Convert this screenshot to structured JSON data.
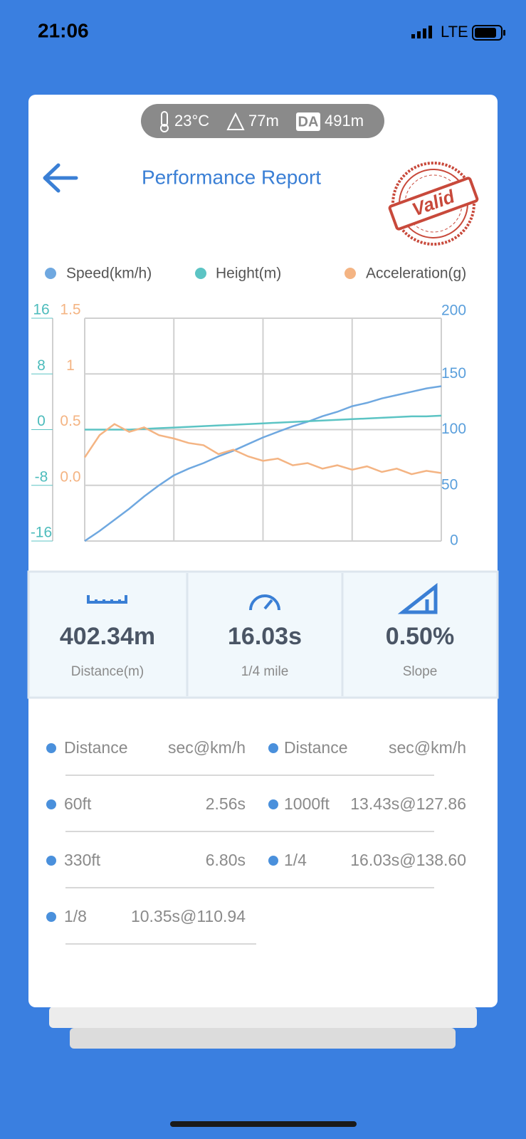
{
  "status_bar": {
    "time": "21:06",
    "network": "LTE"
  },
  "conditions": {
    "temperature": "23°C",
    "altitude": "77m",
    "da_badge": "DA",
    "density_altitude": "491m"
  },
  "header": {
    "title": "Performance Report",
    "stamp": "Valid"
  },
  "chart_data": {
    "type": "line",
    "grid": true,
    "ylim": [
      0,
      200
    ],
    "yticks": [
      0,
      50,
      100,
      150,
      200
    ],
    "y2lim": [
      -16,
      16
    ],
    "y2ticks": [
      -16,
      -8,
      0,
      8,
      16
    ],
    "y3lim": [
      -0.5,
      1.5
    ],
    "y3ticks": [
      {
        "value": 0,
        "label": "0.0"
      },
      0.5,
      1,
      1.5
    ],
    "series": [
      {
        "name": "Speed(km/h)",
        "color": "#6fa8e0",
        "axis": "y",
        "values": [
          0,
          9,
          19,
          29,
          40,
          50,
          59,
          65,
          70,
          76,
          81,
          87,
          93,
          98,
          103,
          107,
          112,
          116,
          121,
          124,
          128,
          131,
          134,
          137,
          139
        ]
      },
      {
        "name": "Height(m)",
        "color": "#5cc4c4",
        "axis": "y2",
        "values": [
          0,
          0,
          0,
          0,
          0.1,
          0.2,
          0.3,
          0.4,
          0.5,
          0.6,
          0.7,
          0.8,
          0.9,
          1.0,
          1.1,
          1.2,
          1.3,
          1.4,
          1.5,
          1.6,
          1.7,
          1.8,
          1.9,
          1.9,
          2.0
        ]
      },
      {
        "name": "Acceleration(g)",
        "color": "#f4b483",
        "axis": "y3",
        "values": [
          0.25,
          0.45,
          0.55,
          0.48,
          0.52,
          0.45,
          0.42,
          0.38,
          0.36,
          0.28,
          0.32,
          0.26,
          0.22,
          0.24,
          0.18,
          0.2,
          0.15,
          0.18,
          0.14,
          0.17,
          0.12,
          0.15,
          0.1,
          0.13,
          0.11
        ]
      }
    ]
  },
  "stats": [
    {
      "value": "402.34m",
      "label": "Distance(m)"
    },
    {
      "value": "16.03s",
      "label": "1/4 mile"
    },
    {
      "value": "0.50%",
      "label": "Slope"
    }
  ],
  "splits": {
    "columns": [
      "Distance",
      "sec@km/h"
    ],
    "rows": [
      [
        "60ft",
        "2.56s"
      ],
      [
        "330ft",
        "6.80s"
      ],
      [
        "1/8",
        "10.35s@110.94"
      ],
      [
        "1000ft",
        "13.43s@127.86"
      ],
      [
        "1/4",
        "16.03s@138.60"
      ]
    ]
  }
}
